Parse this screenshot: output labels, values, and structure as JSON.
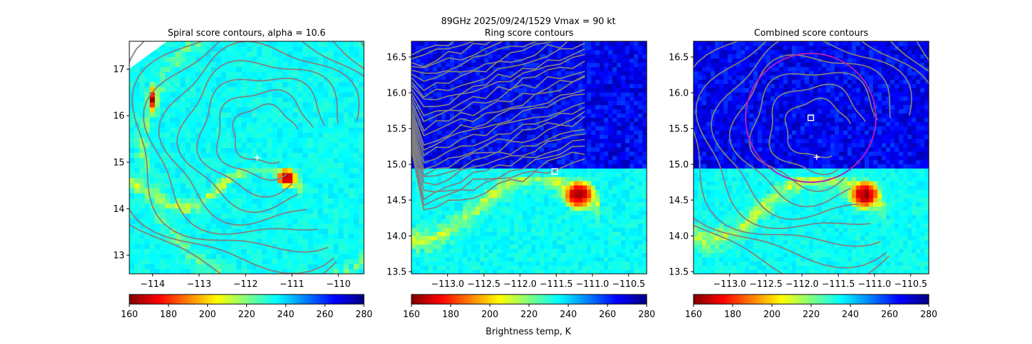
{
  "suptitle": "89GHz  2025/09/24/1529    Vmax = 90 kt",
  "colorbar_label": "Brightness temp, K",
  "chart_data": [
    {
      "type": "heatmap",
      "title": "Spiral score contours, alpha = 10.6",
      "x_ticks": [
        -114,
        -113,
        -112,
        -111,
        -110
      ],
      "x_tick_labels": [
        "−114",
        "−113",
        "−112",
        "−111",
        "−110"
      ],
      "y_ticks": [
        13,
        14,
        15,
        16,
        17
      ],
      "y_tick_labels": [
        "13",
        "14",
        "15",
        "16",
        "17"
      ],
      "xlim": [
        -114.5,
        -109.45
      ],
      "ylim": [
        12.6,
        17.6
      ],
      "colormap": "jet",
      "clim": [
        160,
        280
      ],
      "colorbar_ticks": [
        "160",
        "180",
        "200",
        "220",
        "240",
        "260",
        "280"
      ],
      "contour_color": "#808080",
      "markers": [
        {
          "shape": "plus",
          "x": -111.75,
          "y": 15.1,
          "color": "#ffffff"
        }
      ],
      "cold_cores": [
        {
          "x": -111.1,
          "y": 14.7,
          "min_tb": 160
        },
        {
          "x": -114.0,
          "y": 16.4,
          "min_tb": 160
        }
      ]
    },
    {
      "type": "heatmap",
      "title": "Ring score contours",
      "x_ticks": [
        -113.0,
        -112.5,
        -112.0,
        -111.5,
        -111.0,
        -110.5
      ],
      "x_tick_labels": [
        "−113.0",
        "−112.5",
        "−112.0",
        "−111.5",
        "−111.0",
        "−110.5"
      ],
      "y_ticks": [
        13.5,
        14.0,
        14.5,
        15.0,
        15.5,
        16.0,
        16.5
      ],
      "y_tick_labels": [
        "13.5",
        "14.0",
        "14.5",
        "15.0",
        "15.5",
        "16.0",
        "16.5"
      ],
      "xlim": [
        -113.5,
        -110.25
      ],
      "ylim": [
        13.47,
        16.72
      ],
      "colormap": "jet",
      "clim": [
        160,
        280
      ],
      "colorbar_ticks": [
        "160",
        "180",
        "200",
        "220",
        "240",
        "260",
        "280"
      ],
      "contour_color": "#808080",
      "markers": [
        {
          "shape": "square",
          "x": -111.52,
          "y": 14.9,
          "color": "#ffffff"
        }
      ],
      "cold_cores": [
        {
          "x": -111.15,
          "y": 14.6,
          "min_tb": 160
        }
      ]
    },
    {
      "type": "heatmap",
      "title": "Combined score contours",
      "x_ticks": [
        -113.0,
        -112.5,
        -112.0,
        -111.5,
        -111.0,
        -110.5
      ],
      "x_tick_labels": [
        "−113.0",
        "−112.5",
        "−112.0",
        "−111.5",
        "−111.0",
        "−110.5"
      ],
      "y_ticks": [
        13.5,
        14.0,
        14.5,
        15.0,
        15.5,
        16.0,
        16.5
      ],
      "y_tick_labels": [
        "13.5",
        "14.0",
        "14.5",
        "15.0",
        "15.5",
        "16.0",
        "16.5"
      ],
      "xlim": [
        -113.5,
        -110.25
      ],
      "ylim": [
        13.47,
        16.72
      ],
      "colormap": "jet",
      "clim": [
        160,
        280
      ],
      "colorbar_ticks": [
        "160",
        "180",
        "200",
        "220",
        "240",
        "260",
        "280"
      ],
      "contour_color": "#808080",
      "markers": [
        {
          "shape": "square",
          "x": -111.88,
          "y": 15.65,
          "color": "#ffffff"
        },
        {
          "shape": "plus",
          "x": -111.8,
          "y": 15.1,
          "color": "#ffffff"
        }
      ],
      "circle": {
        "center_x": -111.88,
        "center_y": 15.65,
        "radius_deg": 0.9,
        "color": "#b41eb4"
      },
      "cold_cores": [
        {
          "x": -111.1,
          "y": 14.6,
          "min_tb": 160
        }
      ]
    }
  ]
}
